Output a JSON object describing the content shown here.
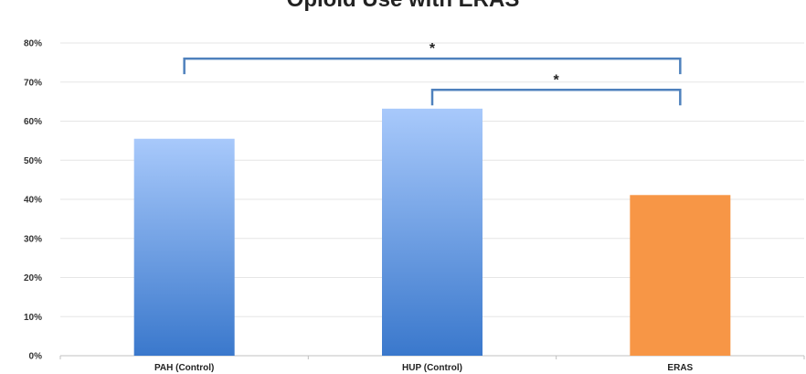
{
  "chart_data": {
    "type": "bar",
    "title": "Opioid Use with ERAS",
    "xlabel": "",
    "ylabel": "",
    "categories": [
      "PAH (Control)",
      "HUP (Control)",
      "ERAS"
    ],
    "values": [
      0.555,
      0.632,
      0.411
    ],
    "ylim": [
      0,
      0.8
    ],
    "yticks": [
      0,
      0.1,
      0.2,
      0.3,
      0.4,
      0.5,
      0.6,
      0.7,
      0.8
    ],
    "ytick_labels": [
      "0%",
      "10%",
      "20%",
      "30%",
      "40%",
      "50%",
      "60%",
      "70%",
      "80%"
    ],
    "grid": true,
    "legend": "none",
    "bar_colors": [
      "#5b93dd",
      "#5b93dd",
      "#f79646"
    ],
    "significance": [
      {
        "from": "PAH (Control)",
        "to": "ERAS",
        "label": "*",
        "level": 0.76
      },
      {
        "from": "HUP (Control)",
        "to": "ERAS",
        "label": "*",
        "level": 0.68
      }
    ]
  },
  "colors": {
    "gradient_top": "#a8c9fb",
    "gradient_bottom": "#3a78cc",
    "eras": "#f79646",
    "bracket": "#4f81bd",
    "grid": "#e6e6e6",
    "axis": "#c0c0c0"
  }
}
